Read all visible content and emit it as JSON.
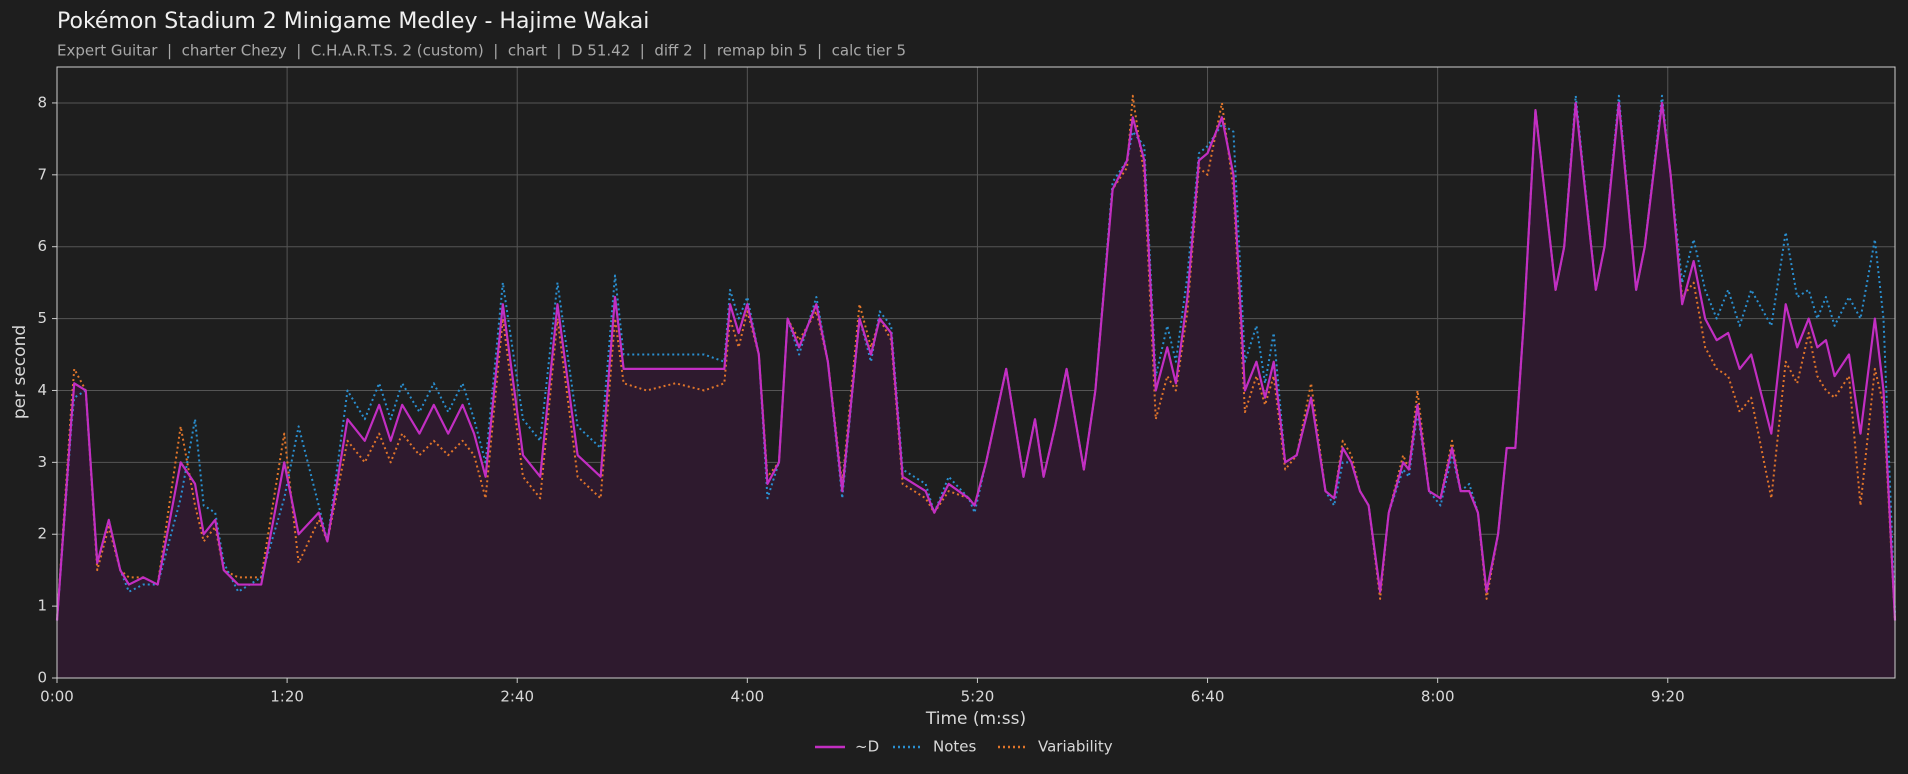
{
  "chart_data": {
    "type": "line",
    "title": "Pokémon Stadium 2 Minigame Medley - Hajime Wakai",
    "subtitle": "Expert Guitar  |  charter Chezy  |  C.H.A.R.T.S. 2 (custom)  |  chart  |  D 51.42  |  diff 2  |  remap bin 5  |  calc tier 5",
    "xlabel": "Time (m:ss)",
    "ylabel": "per second",
    "xlim": [
      0,
      639
    ],
    "ylim": [
      0,
      8.5
    ],
    "xticks": [
      {
        "value": 0,
        "label": "0:00"
      },
      {
        "value": 80,
        "label": "1:20"
      },
      {
        "value": 160,
        "label": "2:40"
      },
      {
        "value": 240,
        "label": "4:00"
      },
      {
        "value": 320,
        "label": "5:20"
      },
      {
        "value": 400,
        "label": "6:40"
      },
      {
        "value": 480,
        "label": "8:00"
      },
      {
        "value": 560,
        "label": "9:20"
      }
    ],
    "yticks": [
      0,
      1,
      2,
      3,
      4,
      5,
      6,
      7,
      8
    ],
    "grid": true,
    "legend": "bottom",
    "fill_series": 0,
    "fill_color": "#2e1a2e",
    "x": [
      0,
      5,
      6,
      10,
      14,
      18,
      22,
      25,
      30,
      35,
      43,
      48,
      51,
      55,
      58,
      63,
      71,
      79,
      84,
      91,
      94,
      101,
      107,
      112,
      116,
      120,
      126,
      131,
      136,
      141,
      145,
      149,
      155,
      162,
      168,
      174,
      181,
      189,
      194,
      197,
      205,
      215,
      225,
      232,
      234,
      237,
      240,
      244,
      247,
      251,
      254,
      258,
      264,
      268,
      273,
      279,
      283,
      286,
      290,
      294,
      302,
      305,
      310,
      317,
      319,
      323,
      330,
      336,
      340,
      343,
      347,
      351,
      357,
      361,
      367,
      372,
      374,
      378,
      382,
      386,
      389,
      393,
      397,
      400,
      405,
      409,
      413,
      417,
      420,
      423,
      427,
      431,
      436,
      441,
      444,
      447,
      450,
      453,
      456,
      460,
      463,
      468,
      470,
      473,
      477,
      481,
      485,
      488,
      491,
      494,
      497,
      501,
      504,
      507,
      510,
      514,
      521,
      524,
      528,
      535,
      538,
      543,
      549,
      552,
      558,
      561,
      565,
      569,
      573,
      577,
      581,
      585,
      589,
      596,
      601,
      605,
      609,
      612,
      615,
      618,
      623,
      627,
      632,
      635,
      639
    ],
    "series": [
      {
        "name": "~D",
        "color": "#c22ec2",
        "dash": "solid",
        "values": [
          0.8,
          3.6,
          4.1,
          4.0,
          1.6,
          2.2,
          1.5,
          1.3,
          1.4,
          1.3,
          3.0,
          2.7,
          2.0,
          2.2,
          1.5,
          1.3,
          1.3,
          3.0,
          2.0,
          2.3,
          1.9,
          3.6,
          3.3,
          3.8,
          3.3,
          3.8,
          3.4,
          3.8,
          3.4,
          3.8,
          3.4,
          2.8,
          5.2,
          3.1,
          2.8,
          5.2,
          3.1,
          2.8,
          5.3,
          4.3,
          4.3,
          4.3,
          4.3,
          4.3,
          5.2,
          4.8,
          5.2,
          4.5,
          2.7,
          3.0,
          5.0,
          4.6,
          5.2,
          4.4,
          2.6,
          5.0,
          4.5,
          5.0,
          4.8,
          2.8,
          2.6,
          2.3,
          2.7,
          2.5,
          2.4,
          3.0,
          4.3,
          2.8,
          3.6,
          2.8,
          3.5,
          4.3,
          2.9,
          4.0,
          6.8,
          7.2,
          7.8,
          7.2,
          4.0,
          4.6,
          4.1,
          5.3,
          7.2,
          7.3,
          7.8,
          7.0,
          4.0,
          4.4,
          3.9,
          4.4,
          3.0,
          3.1,
          3.9,
          2.6,
          2.5,
          3.2,
          3.0,
          2.6,
          2.4,
          1.2,
          2.3,
          3.0,
          2.9,
          3.8,
          2.6,
          2.5,
          3.2,
          2.6,
          2.6,
          2.3,
          1.2,
          2.0,
          3.2,
          3.2,
          5.0,
          7.9,
          5.4,
          6.0,
          8.0,
          5.4,
          6.0,
          8.0,
          5.4,
          6.0,
          8.0,
          7.0,
          5.2,
          5.8,
          5.0,
          4.7,
          4.8,
          4.3,
          4.5,
          3.4,
          5.2,
          4.6,
          5.0,
          4.6,
          4.7,
          4.2,
          4.5,
          3.4,
          5.0,
          4.0,
          0.8
        ]
      },
      {
        "name": "Notes",
        "color": "#2a8fd0",
        "dash": "dotted",
        "values": [
          0.8,
          3.5,
          3.9,
          4.0,
          1.6,
          2.2,
          1.5,
          1.2,
          1.3,
          1.3,
          2.5,
          3.6,
          2.4,
          2.3,
          1.6,
          1.2,
          1.4,
          2.5,
          3.5,
          2.4,
          1.9,
          4.0,
          3.6,
          4.1,
          3.6,
          4.1,
          3.7,
          4.1,
          3.7,
          4.1,
          3.6,
          3.0,
          5.5,
          3.6,
          3.3,
          5.5,
          3.5,
          3.2,
          5.6,
          4.5,
          4.5,
          4.5,
          4.5,
          4.4,
          5.4,
          5.0,
          5.3,
          4.5,
          2.5,
          3.0,
          5.0,
          4.5,
          5.3,
          4.4,
          2.5,
          5.0,
          4.4,
          5.1,
          4.9,
          2.9,
          2.7,
          2.3,
          2.8,
          2.5,
          2.3,
          3.0,
          4.3,
          2.8,
          3.6,
          2.8,
          3.5,
          4.3,
          2.9,
          4.0,
          6.9,
          7.2,
          7.6,
          7.4,
          4.2,
          4.9,
          4.4,
          5.6,
          7.3,
          7.4,
          7.7,
          7.6,
          4.4,
          4.9,
          4.1,
          4.8,
          3.0,
          3.1,
          3.9,
          2.6,
          2.4,
          3.0,
          3.0,
          2.6,
          2.4,
          1.2,
          2.3,
          2.9,
          2.8,
          3.7,
          2.6,
          2.4,
          3.1,
          2.6,
          2.7,
          2.3,
          1.2,
          2.0,
          3.2,
          3.2,
          5.0,
          7.9,
          5.4,
          6.0,
          8.1,
          5.4,
          6.0,
          8.1,
          5.4,
          6.0,
          8.1,
          7.0,
          5.5,
          6.1,
          5.4,
          5.0,
          5.4,
          4.9,
          5.4,
          4.9,
          6.2,
          5.3,
          5.4,
          5.0,
          5.3,
          4.9,
          5.3,
          5.0,
          6.1,
          5.0,
          0.9
        ]
      },
      {
        "name": "Variability",
        "color": "#e0752a",
        "dash": "dotted",
        "values": [
          0.8,
          3.8,
          4.3,
          4.0,
          1.5,
          2.1,
          1.5,
          1.4,
          1.4,
          1.3,
          3.5,
          2.4,
          1.9,
          2.1,
          1.5,
          1.4,
          1.4,
          3.4,
          1.6,
          2.2,
          1.9,
          3.3,
          3.0,
          3.4,
          3.0,
          3.4,
          3.1,
          3.3,
          3.1,
          3.3,
          3.1,
          2.5,
          5.0,
          2.8,
          2.5,
          5.0,
          2.8,
          2.5,
          5.0,
          4.1,
          4.0,
          4.1,
          4.0,
          4.1,
          5.0,
          4.6,
          5.1,
          4.5,
          2.8,
          3.0,
          5.0,
          4.7,
          5.1,
          4.4,
          2.7,
          5.2,
          4.6,
          5.0,
          4.7,
          2.7,
          2.5,
          2.3,
          2.6,
          2.5,
          2.4,
          3.0,
          4.3,
          2.8,
          3.6,
          2.8,
          3.5,
          4.3,
          2.9,
          4.0,
          6.8,
          7.1,
          8.1,
          7.0,
          3.6,
          4.2,
          4.0,
          5.1,
          7.1,
          7.0,
          8.0,
          6.8,
          3.7,
          4.2,
          3.8,
          4.2,
          2.9,
          3.1,
          4.1,
          2.6,
          2.5,
          3.3,
          3.1,
          2.6,
          2.4,
          1.1,
          2.3,
          3.1,
          2.9,
          4.0,
          2.6,
          2.5,
          3.3,
          2.6,
          2.6,
          2.3,
          1.1,
          2.0,
          3.2,
          3.2,
          5.0,
          7.9,
          5.4,
          6.0,
          8.0,
          5.4,
          6.0,
          8.0,
          5.4,
          6.0,
          8.0,
          7.0,
          5.3,
          5.5,
          4.6,
          4.3,
          4.2,
          3.7,
          3.9,
          2.5,
          4.4,
          4.1,
          4.8,
          4.2,
          4.0,
          3.9,
          4.2,
          2.4,
          4.3,
          3.8,
          0.8
        ]
      }
    ]
  }
}
